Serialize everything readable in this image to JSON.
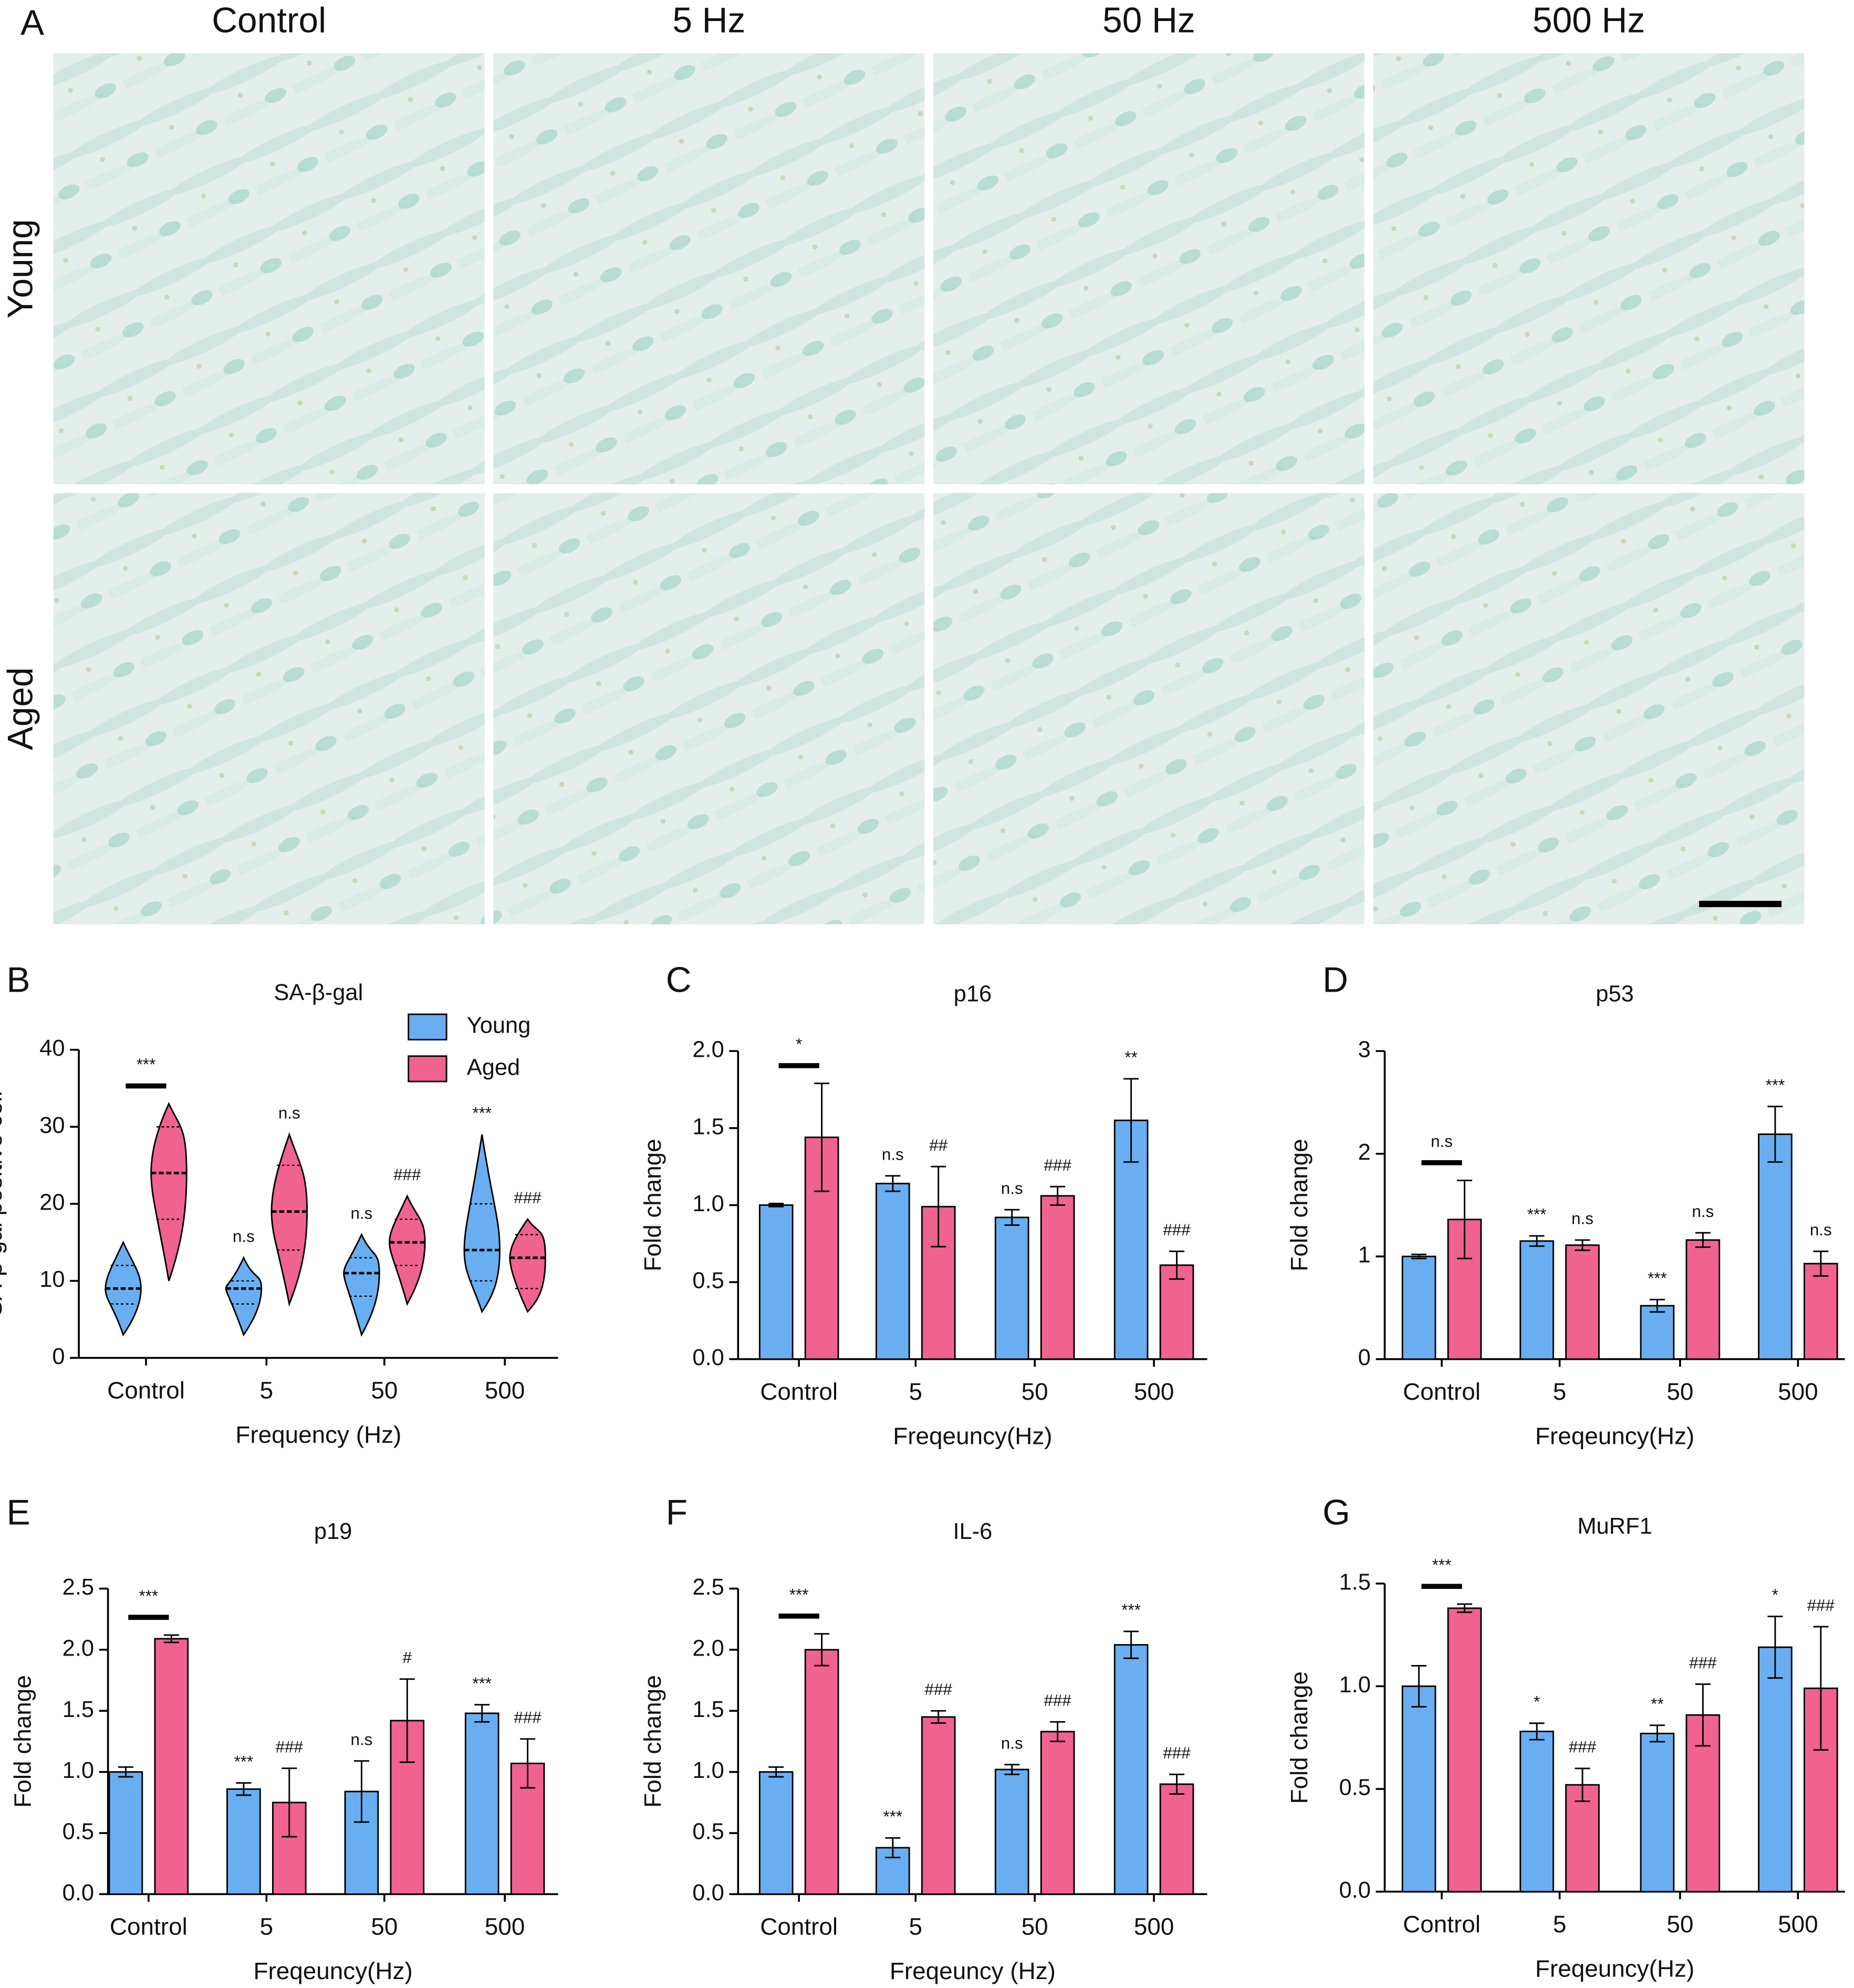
{
  "panel_a": {
    "label": "A",
    "columns": [
      "Control",
      "5 Hz",
      "50 Hz",
      "500 Hz"
    ],
    "rows": [
      "Young",
      "Aged"
    ]
  },
  "chart_data": [
    {
      "type": "violin",
      "panel": "B",
      "title": "SA-β-gal",
      "x_label": "Frequency (Hz)",
      "y_label": "SA-β-gal positive cell",
      "categories": [
        "Control",
        "5",
        "50",
        "500"
      ],
      "legend": "upper right",
      "series": [
        {
          "name": "Young",
          "color": "#6aaef2",
          "values": [
            9,
            9,
            11,
            14
          ],
          "min": [
            3,
            3,
            3,
            6
          ],
          "q1": [
            7,
            7,
            8,
            10
          ],
          "q3": [
            12,
            10,
            13,
            20
          ],
          "max": [
            15,
            13,
            16,
            29
          ],
          "marks": [
            null,
            "n.s",
            "n.s",
            "***"
          ]
        },
        {
          "name": "Aged",
          "color": "#f0628f",
          "values": [
            24,
            19,
            15,
            13
          ],
          "min": [
            10,
            7,
            7,
            6
          ],
          "q1": [
            18,
            14,
            12,
            9
          ],
          "q3": [
            30,
            25,
            18,
            16
          ],
          "max": [
            33,
            29,
            21,
            18
          ],
          "marks": [
            null,
            "n.s",
            "###",
            "###"
          ]
        }
      ],
      "bracket_label": "***",
      "ylim": [
        0,
        40
      ],
      "yticks": [
        0,
        10,
        20,
        30,
        40
      ]
    },
    {
      "type": "bar",
      "panel": "C",
      "title": "p16",
      "x_label": "Freqeuncy(Hz)",
      "y_label": "Fold change",
      "categories": [
        "Control",
        "5",
        "50",
        "500"
      ],
      "series": [
        {
          "name": "Young",
          "color": "#6aaef2",
          "values": [
            1.0,
            1.14,
            0.92,
            1.55
          ],
          "errors": [
            0.01,
            0.05,
            0.05,
            0.27
          ],
          "marks": [
            null,
            "n.s",
            "n.s",
            "**"
          ]
        },
        {
          "name": "Aged",
          "color": "#f0628f",
          "values": [
            1.44,
            0.99,
            1.06,
            0.61
          ],
          "errors": [
            0.35,
            0.26,
            0.06,
            0.09
          ],
          "marks": [
            null,
            "##",
            "###",
            "###"
          ]
        }
      ],
      "bracket_label": "*",
      "ylim": [
        0,
        2
      ],
      "yticks": [
        {
          "value": 0,
          "label": "0.0"
        },
        0.5,
        {
          "value": 1,
          "label": "1.0"
        },
        1.5,
        {
          "value": 2,
          "label": "2.0"
        }
      ]
    },
    {
      "type": "bar",
      "panel": "D",
      "title": "p53",
      "x_label": "Freqeuncy(Hz)",
      "y_label": "Fold change",
      "categories": [
        "Control",
        "5",
        "50",
        "500"
      ],
      "series": [
        {
          "name": "Young",
          "color": "#6aaef2",
          "values": [
            1.0,
            1.15,
            0.52,
            2.19
          ],
          "errors": [
            0.02,
            0.05,
            0.06,
            0.27
          ],
          "marks": [
            null,
            "***",
            "***",
            "***"
          ]
        },
        {
          "name": "Aged",
          "color": "#f0628f",
          "values": [
            1.36,
            1.11,
            1.16,
            0.93
          ],
          "errors": [
            0.38,
            0.05,
            0.07,
            0.12
          ],
          "marks": [
            null,
            "n.s",
            "n.s",
            "n.s"
          ]
        }
      ],
      "bracket_label": "n.s",
      "ylim": [
        0,
        3
      ],
      "yticks": [
        0,
        1,
        2,
        3
      ]
    },
    {
      "type": "bar",
      "panel": "E",
      "title": "p19",
      "x_label": "Freqeuncy(Hz)",
      "y_label": "Fold change",
      "categories": [
        "Control",
        "5",
        "50",
        "500"
      ],
      "series": [
        {
          "name": "Young",
          "color": "#6aaef2",
          "values": [
            1.0,
            0.86,
            0.84,
            1.48
          ],
          "errors": [
            0.04,
            0.05,
            0.25,
            0.07
          ],
          "marks": [
            null,
            "***",
            "n.s",
            "***"
          ]
        },
        {
          "name": "Aged",
          "color": "#f0628f",
          "values": [
            2.09,
            0.75,
            1.42,
            1.07
          ],
          "errors": [
            0.03,
            0.28,
            0.34,
            0.2
          ],
          "marks": [
            null,
            "###",
            "#",
            "###"
          ]
        }
      ],
      "bracket_label": "***",
      "ylim": [
        0,
        2.5
      ],
      "yticks": [
        {
          "value": 0,
          "label": "0.0"
        },
        0.5,
        {
          "value": 1,
          "label": "1.0"
        },
        1.5,
        {
          "value": 2,
          "label": "2.0"
        },
        2.5
      ]
    },
    {
      "type": "bar",
      "panel": "F",
      "title": "IL-6",
      "x_label": "Freqeuncy (Hz)",
      "y_label": "Fold change",
      "categories": [
        "Control",
        "5",
        "50",
        "500"
      ],
      "series": [
        {
          "name": "Young",
          "color": "#6aaef2",
          "values": [
            1.0,
            0.38,
            1.02,
            2.04
          ],
          "errors": [
            0.04,
            0.08,
            0.04,
            0.11
          ],
          "marks": [
            null,
            "***",
            "n.s",
            "***"
          ]
        },
        {
          "name": "Aged",
          "color": "#f0628f",
          "values": [
            2.0,
            1.45,
            1.33,
            0.9
          ],
          "errors": [
            0.13,
            0.05,
            0.08,
            0.08
          ],
          "marks": [
            null,
            "###",
            "###",
            "###"
          ]
        }
      ],
      "bracket_label": "***",
      "ylim": [
        0,
        2.5
      ],
      "yticks": [
        {
          "value": 0,
          "label": "0.0"
        },
        0.5,
        {
          "value": 1,
          "label": "1.0"
        },
        1.5,
        {
          "value": 2,
          "label": "2.0"
        },
        2.5
      ]
    },
    {
      "type": "bar",
      "panel": "G",
      "title": "MuRF1",
      "x_label": "Freqeuncy(Hz)",
      "y_label": "Fold change",
      "categories": [
        "Control",
        "5",
        "50",
        "500"
      ],
      "series": [
        {
          "name": "Young",
          "color": "#6aaef2",
          "values": [
            1.0,
            0.78,
            0.77,
            1.19
          ],
          "errors": [
            0.1,
            0.04,
            0.04,
            0.15
          ],
          "marks": [
            null,
            "*",
            "**",
            "*"
          ]
        },
        {
          "name": "Aged",
          "color": "#f0628f",
          "values": [
            1.38,
            0.52,
            0.86,
            0.99
          ],
          "errors": [
            0.02,
            0.08,
            0.15,
            0.3
          ],
          "marks": [
            null,
            "###",
            "###",
            "###"
          ]
        }
      ],
      "bracket_label": "***",
      "ylim": [
        0,
        1.5
      ],
      "yticks": [
        {
          "value": 0,
          "label": "0.0"
        },
        0.5,
        {
          "value": 1,
          "label": "1.0"
        },
        1.5
      ]
    }
  ]
}
